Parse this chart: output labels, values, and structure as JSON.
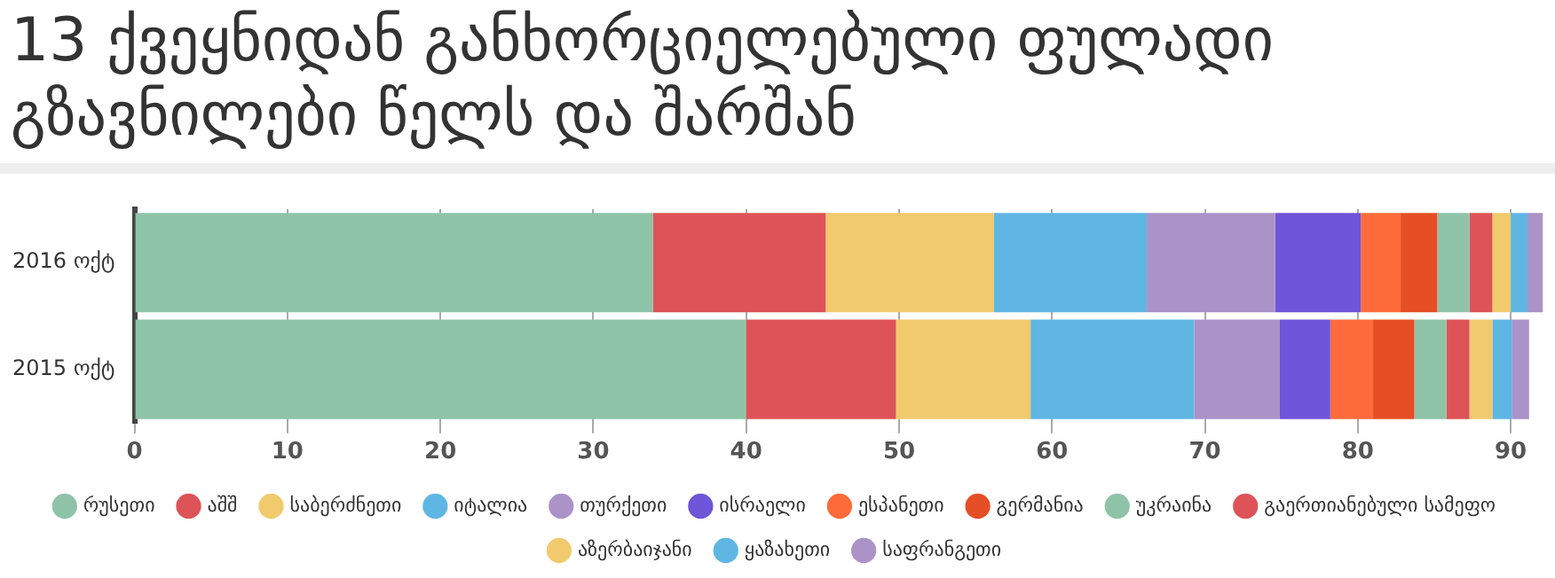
{
  "chart_data": {
    "type": "bar",
    "orientation": "horizontal",
    "stacked": true,
    "title": "13 ქვეყნიდან განხორციელებული ფულადი გზავნილები წელს და შარშან",
    "categories": [
      "2016 ოქტ",
      "2015 ოქტ"
    ],
    "series": [
      {
        "name": "რუსეთი",
        "color": "#8fc3a8",
        "values": [
          33.9,
          40.0
        ]
      },
      {
        "name": "აშშ",
        "color": "#de5357",
        "values": [
          11.3,
          9.8
        ]
      },
      {
        "name": "საბერძნეთი",
        "color": "#f0ca6c",
        "values": [
          11.0,
          8.8
        ]
      },
      {
        "name": "იტალია",
        "color": "#5fb6e3",
        "values": [
          10.0,
          10.7
        ]
      },
      {
        "name": "თურქეთი",
        "color": "#ab92c7",
        "values": [
          8.4,
          5.6
        ]
      },
      {
        "name": "ისრაელი",
        "color": "#6e55d9",
        "values": [
          5.6,
          3.3
        ]
      },
      {
        "name": "ესპანეთი",
        "color": "#fe6b3a",
        "values": [
          2.6,
          2.8
        ]
      },
      {
        "name": "გერმანია",
        "color": "#e64e25",
        "values": [
          2.4,
          2.7
        ]
      },
      {
        "name": "უკრაინა",
        "color": "#8fc3a8",
        "values": [
          2.1,
          2.1
        ]
      },
      {
        "name": "გაერთიანებული სამეფო",
        "color": "#de5357",
        "values": [
          1.5,
          1.5
        ]
      },
      {
        "name": "აზერბაიჯანი",
        "color": "#f0ca6c",
        "values": [
          1.2,
          1.5
        ]
      },
      {
        "name": "ყაზახეთი",
        "color": "#5fb6e3",
        "values": [
          1.1,
          1.3
        ]
      },
      {
        "name": "საფრანგეთი",
        "color": "#ab92c7",
        "values": [
          1.0,
          1.1
        ]
      }
    ],
    "xlim": [
      0,
      92.2
    ],
    "xticks": [
      0,
      10,
      20,
      30,
      40,
      50,
      60,
      70,
      80,
      90
    ],
    "grid": "x",
    "legend": "bottom"
  }
}
